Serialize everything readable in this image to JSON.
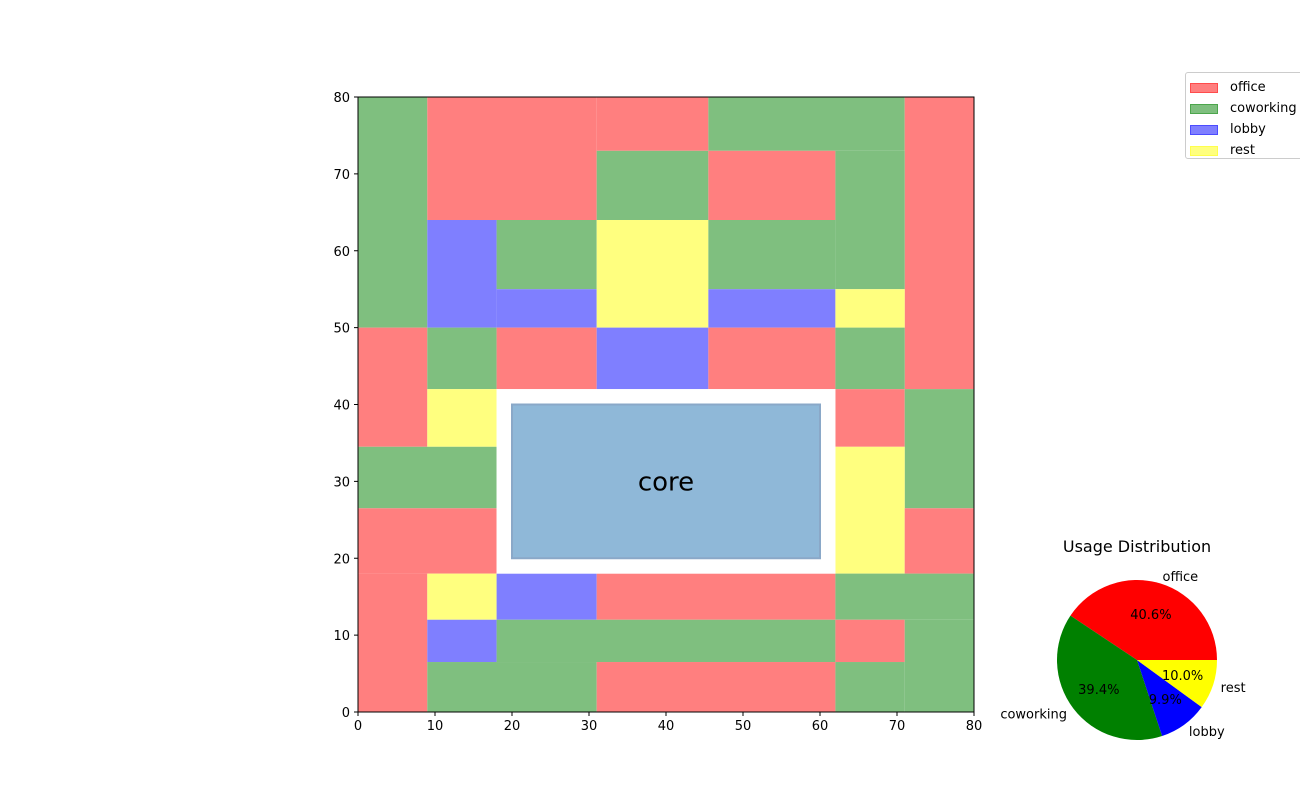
{
  "chart_data": [
    {
      "type": "heatmap",
      "title": "",
      "xlabel": "",
      "ylabel": "",
      "xlim": [
        0,
        80
      ],
      "ylim": [
        0,
        80
      ],
      "xticks": [
        "0",
        "10",
        "20",
        "30",
        "40",
        "50",
        "60",
        "70",
        "80"
      ],
      "yticks": [
        "0",
        "10",
        "20",
        "30",
        "40",
        "50",
        "60",
        "70",
        "80"
      ],
      "grid": false,
      "legend_position": "top-right, outside plot",
      "colors": {
        "office": "#ff7f7f",
        "coworking": "#7fbf7f",
        "lobby": "#7f7fff",
        "rest": "#ffff7f"
      },
      "core": {
        "label": "core",
        "x0": 20,
        "x1": 60,
        "y0": 20,
        "y1": 40,
        "clear_x0": 18,
        "clear_x1": 62,
        "clear_y0": 18,
        "clear_y1": 42,
        "color": "#8fb8d8"
      },
      "zones": [
        {
          "x0": 0,
          "x1": 9,
          "y0": 50,
          "y1": 80,
          "use": "coworking"
        },
        {
          "x0": 9,
          "x1": 31,
          "y0": 64,
          "y1": 80,
          "use": "office"
        },
        {
          "x0": 31,
          "x1": 45.5,
          "y0": 73,
          "y1": 80,
          "use": "office"
        },
        {
          "x0": 45.5,
          "x1": 71,
          "y0": 73,
          "y1": 80,
          "use": "coworking"
        },
        {
          "x0": 71,
          "x1": 80,
          "y0": 42,
          "y1": 80,
          "use": "office"
        },
        {
          "x0": 31,
          "x1": 45.5,
          "y0": 64,
          "y1": 73,
          "use": "coworking"
        },
        {
          "x0": 45.5,
          "x1": 62,
          "y0": 64,
          "y1": 73,
          "use": "office"
        },
        {
          "x0": 62,
          "x1": 71,
          "y0": 55,
          "y1": 73,
          "use": "coworking"
        },
        {
          "x0": 9,
          "x1": 18,
          "y0": 50,
          "y1": 64,
          "use": "lobby"
        },
        {
          "x0": 18,
          "x1": 31,
          "y0": 55,
          "y1": 64,
          "use": "coworking"
        },
        {
          "x0": 18,
          "x1": 31,
          "y0": 50,
          "y1": 55,
          "use": "lobby"
        },
        {
          "x0": 31,
          "x1": 45.5,
          "y0": 50,
          "y1": 64,
          "use": "rest"
        },
        {
          "x0": 45.5,
          "x1": 62,
          "y0": 55,
          "y1": 64,
          "use": "coworking"
        },
        {
          "x0": 45.5,
          "x1": 62,
          "y0": 50,
          "y1": 55,
          "use": "lobby"
        },
        {
          "x0": 62,
          "x1": 71,
          "y0": 50,
          "y1": 55,
          "use": "rest"
        },
        {
          "x0": 0,
          "x1": 9,
          "y0": 34.5,
          "y1": 50,
          "use": "office"
        },
        {
          "x0": 9,
          "x1": 18,
          "y0": 42,
          "y1": 50,
          "use": "coworking"
        },
        {
          "x0": 18,
          "x1": 31,
          "y0": 42,
          "y1": 50,
          "use": "office"
        },
        {
          "x0": 31,
          "x1": 45.5,
          "y0": 42,
          "y1": 50,
          "use": "lobby"
        },
        {
          "x0": 45.5,
          "x1": 62,
          "y0": 42,
          "y1": 50,
          "use": "office"
        },
        {
          "x0": 62,
          "x1": 71,
          "y0": 42,
          "y1": 50,
          "use": "coworking"
        },
        {
          "x0": 9,
          "x1": 18,
          "y0": 34.5,
          "y1": 42,
          "use": "rest"
        },
        {
          "x0": 62,
          "x1": 71,
          "y0": 34.5,
          "y1": 42,
          "use": "office"
        },
        {
          "x0": 71,
          "x1": 80,
          "y0": 26.5,
          "y1": 42,
          "use": "coworking"
        },
        {
          "x0": 0,
          "x1": 18,
          "y0": 26.5,
          "y1": 34.5,
          "use": "coworking"
        },
        {
          "x0": 62,
          "x1": 71,
          "y0": 18,
          "y1": 34.5,
          "use": "rest"
        },
        {
          "x0": 0,
          "x1": 18,
          "y0": 18,
          "y1": 26.5,
          "use": "office"
        },
        {
          "x0": 71,
          "x1": 80,
          "y0": 18,
          "y1": 26.5,
          "use": "office"
        },
        {
          "x0": 0,
          "x1": 9,
          "y0": 0,
          "y1": 18,
          "use": "office"
        },
        {
          "x0": 9,
          "x1": 18,
          "y0": 12,
          "y1": 18,
          "use": "rest"
        },
        {
          "x0": 18,
          "x1": 31,
          "y0": 12,
          "y1": 18,
          "use": "lobby"
        },
        {
          "x0": 31,
          "x1": 62,
          "y0": 12,
          "y1": 18,
          "use": "office"
        },
        {
          "x0": 62,
          "x1": 80,
          "y0": 12,
          "y1": 18,
          "use": "coworking"
        },
        {
          "x0": 9,
          "x1": 18,
          "y0": 6.5,
          "y1": 12,
          "use": "lobby"
        },
        {
          "x0": 18,
          "x1": 62,
          "y0": 6.5,
          "y1": 12,
          "use": "coworking"
        },
        {
          "x0": 62,
          "x1": 71,
          "y0": 6.5,
          "y1": 12,
          "use": "office"
        },
        {
          "x0": 71,
          "x1": 80,
          "y0": 0,
          "y1": 12,
          "use": "coworking"
        },
        {
          "x0": 9,
          "x1": 31,
          "y0": 0,
          "y1": 6.5,
          "use": "coworking"
        },
        {
          "x0": 31,
          "x1": 62,
          "y0": 0,
          "y1": 6.5,
          "use": "office"
        },
        {
          "x0": 62,
          "x1": 71,
          "y0": 0,
          "y1": 6.5,
          "use": "coworking"
        }
      ],
      "legend": [
        {
          "name": "office",
          "color": "#ff7f7f",
          "border": "#ff4c4c"
        },
        {
          "name": "coworking",
          "color": "#7fbf7f",
          "border": "#4ca64c"
        },
        {
          "name": "lobby",
          "color": "#7f7fff",
          "border": "#4c4cff"
        },
        {
          "name": "rest",
          "color": "#ffff7f",
          "border": "#ffff4c"
        }
      ]
    },
    {
      "type": "pie",
      "title": "Usage Distribution",
      "slices": [
        {
          "label": "office",
          "value": 40.6,
          "pct": "40.6%",
          "color": "#ff0000"
        },
        {
          "label": "coworking",
          "value": 39.4,
          "pct": "39.4%",
          "color": "#008000"
        },
        {
          "label": "lobby",
          "value": 9.9,
          "pct": "9.9%",
          "color": "#0000ff"
        },
        {
          "label": "rest",
          "value": 10.0,
          "pct": "10.0%",
          "color": "#ffff00"
        }
      ],
      "start_angle": 0,
      "direction": "counterclockwise"
    }
  ]
}
